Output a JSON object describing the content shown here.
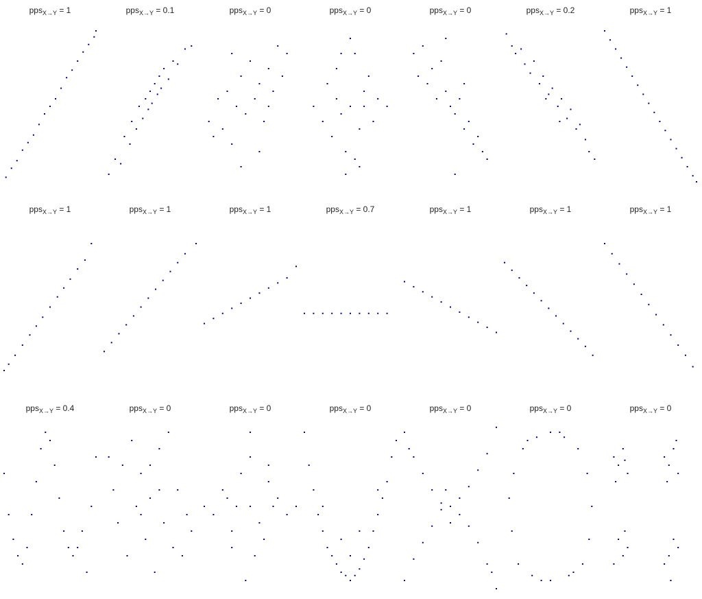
{
  "chart_data": [
    {
      "type": "scatter",
      "title": "pps",
      "title_sub": "X→Y",
      "title_end": " = 1",
      "color": "#000080",
      "xlim": [
        0,
        100
      ],
      "ylim": [
        0,
        100
      ],
      "x": [
        2,
        8,
        14,
        20,
        26,
        32,
        38,
        44,
        50,
        56,
        62,
        68,
        74,
        80,
        86,
        92,
        98,
        100
      ],
      "y": [
        3,
        9,
        14,
        21,
        26,
        31,
        38,
        45,
        50,
        55,
        62,
        69,
        74,
        80,
        86,
        91,
        96,
        100
      ]
    },
    {
      "type": "scatter",
      "title": "pps",
      "title_sub": "X→Y",
      "title_end": " = 0.1",
      "color": "#000080",
      "xlim": [
        0,
        100
      ],
      "ylim": [
        0,
        100
      ],
      "x": [
        5,
        12,
        18,
        22,
        28,
        30,
        35,
        38,
        42,
        45,
        48,
        50,
        52,
        55,
        58,
        60,
        62,
        65,
        70,
        75,
        80,
        88,
        95
      ],
      "y": [
        5,
        15,
        12,
        30,
        25,
        40,
        35,
        50,
        42,
        55,
        48,
        60,
        52,
        65,
        58,
        70,
        62,
        75,
        68,
        80,
        78,
        88,
        90
      ]
    },
    {
      "type": "scatter",
      "title": "pps",
      "title_sub": "X→Y",
      "title_end": " = 0",
      "color": "#000080",
      "xlim": [
        0,
        100
      ],
      "ylim": [
        0,
        100
      ],
      "x": [
        5,
        10,
        15,
        20,
        25,
        30,
        35,
        40,
        45,
        50,
        55,
        60,
        65,
        70,
        75,
        80,
        85,
        90,
        60,
        40,
        30,
        70
      ],
      "y": [
        40,
        30,
        55,
        35,
        60,
        25,
        50,
        70,
        45,
        80,
        55,
        65,
        40,
        75,
        60,
        90,
        70,
        85,
        20,
        10,
        85,
        50
      ]
    },
    {
      "type": "scatter",
      "title": "pps",
      "title_sub": "X→Y",
      "title_end": " = 0",
      "color": "#000080",
      "xlim": [
        0,
        100
      ],
      "ylim": [
        0,
        100
      ],
      "x": [
        10,
        20,
        25,
        30,
        35,
        40,
        45,
        50,
        55,
        60,
        65,
        70,
        75,
        80,
        90,
        50,
        45,
        55,
        35,
        65,
        40,
        60
      ],
      "y": [
        50,
        40,
        65,
        30,
        75,
        45,
        20,
        50,
        85,
        35,
        60,
        70,
        40,
        55,
        50,
        95,
        5,
        15,
        55,
        50,
        85,
        10
      ]
    },
    {
      "type": "scatter",
      "title": "pps",
      "title_sub": "X→Y",
      "title_end": " = 0",
      "color": "#000080",
      "xlim": [
        0,
        100
      ],
      "ylim": [
        0,
        100
      ],
      "x": [
        10,
        15,
        20,
        25,
        30,
        35,
        40,
        45,
        50,
        55,
        60,
        65,
        70,
        75,
        80,
        85,
        90,
        55,
        45,
        65
      ],
      "y": [
        85,
        70,
        90,
        65,
        75,
        55,
        80,
        60,
        50,
        45,
        55,
        35,
        40,
        25,
        30,
        20,
        15,
        5,
        95,
        65
      ]
    },
    {
      "type": "scatter",
      "title": "pps",
      "title_sub": "X→Y",
      "title_end": " = 0.2",
      "color": "#000080",
      "xlim": [
        0,
        100
      ],
      "ylim": [
        0,
        100
      ],
      "x": [
        2,
        8,
        12,
        18,
        22,
        28,
        32,
        38,
        42,
        48,
        52,
        58,
        62,
        68,
        72,
        78,
        82,
        88,
        92,
        98,
        45,
        60
      ],
      "y": [
        98,
        90,
        85,
        88,
        78,
        72,
        80,
        65,
        70,
        58,
        62,
        50,
        55,
        42,
        48,
        35,
        38,
        28,
        20,
        15,
        55,
        40
      ]
    },
    {
      "type": "scatter",
      "title": "pps",
      "title_sub": "X→Y",
      "title_end": " = 1",
      "color": "#000080",
      "xlim": [
        0,
        100
      ],
      "ylim": [
        0,
        100
      ],
      "x": [
        0,
        6,
        12,
        18,
        24,
        30,
        36,
        42,
        48,
        54,
        60,
        66,
        72,
        78,
        84,
        90,
        96,
        100
      ],
      "y": [
        100,
        94,
        88,
        82,
        76,
        70,
        64,
        58,
        52,
        46,
        40,
        34,
        28,
        22,
        16,
        10,
        4,
        0
      ]
    },
    {
      "type": "scatter",
      "title": "pps",
      "title_sub": "X→Y",
      "title_end": " = 1",
      "color": "#000080",
      "xlim": [
        0,
        100
      ],
      "ylim": [
        0,
        100
      ],
      "x": [
        0,
        5,
        12,
        20,
        28,
        35,
        42,
        50,
        58,
        65,
        72,
        80,
        88,
        95
      ],
      "y": [
        0,
        5,
        12,
        20,
        28,
        35,
        42,
        50,
        58,
        65,
        72,
        80,
        87,
        100
      ]
    },
    {
      "type": "scatter",
      "title": "pps",
      "title_sub": "X→Y",
      "title_end": " = 1",
      "color": "#000080",
      "xlim": [
        0,
        100
      ],
      "ylim": [
        0,
        100
      ],
      "x": [
        0,
        8,
        16,
        24,
        32,
        40,
        48,
        56,
        64,
        72,
        80,
        88,
        100
      ],
      "y": [
        15,
        22,
        29,
        36,
        43,
        50,
        57,
        64,
        71,
        78,
        85,
        92,
        100
      ]
    },
    {
      "type": "scatter",
      "title": "pps",
      "title_sub": "X→Y",
      "title_end": " = 1",
      "color": "#000080",
      "xlim": [
        0,
        100
      ],
      "ylim": [
        0,
        100
      ],
      "x": [
        0,
        10,
        20,
        30,
        40,
        50,
        60,
        70,
        80,
        90,
        100
      ],
      "y": [
        37,
        41,
        45,
        49,
        53,
        57,
        61,
        65,
        69,
        73,
        82
      ]
    },
    {
      "type": "scatter",
      "title": "pps",
      "title_sub": "X→Y",
      "title_end": " = 0.7",
      "color": "#000080",
      "xlim": [
        0,
        100
      ],
      "ylim": [
        0,
        100
      ],
      "x": [
        0,
        10,
        20,
        30,
        40,
        50,
        60,
        70,
        80,
        90
      ],
      "y": [
        45,
        45,
        45,
        45,
        45,
        45,
        45,
        45,
        45,
        45
      ]
    },
    {
      "type": "scatter",
      "title": "pps",
      "title_sub": "X→Y",
      "title_end": " = 1",
      "color": "#000080",
      "xlim": [
        0,
        100
      ],
      "ylim": [
        0,
        100
      ],
      "x": [
        0,
        10,
        20,
        30,
        40,
        50,
        60,
        70,
        80,
        90,
        100
      ],
      "y": [
        70,
        66,
        62,
        58,
        54,
        50,
        46,
        42,
        38,
        34,
        30
      ]
    },
    {
      "type": "scatter",
      "title": "pps",
      "title_sub": "X→Y",
      "title_end": " = 1",
      "color": "#000080",
      "xlim": [
        0,
        100
      ],
      "ylim": [
        0,
        100
      ],
      "x": [
        0,
        8,
        16,
        24,
        32,
        40,
        48,
        56,
        64,
        72,
        80,
        88,
        96
      ],
      "y": [
        85,
        79,
        73,
        67,
        61,
        55,
        49,
        43,
        37,
        31,
        25,
        19,
        12
      ]
    },
    {
      "type": "scatter",
      "title": "pps",
      "title_sub": "X→Y",
      "title_end": " = 1",
      "color": "#000080",
      "xlim": [
        0,
        100
      ],
      "ylim": [
        0,
        100
      ],
      "x": [
        0,
        8,
        16,
        24,
        32,
        40,
        48,
        56,
        64,
        72,
        80,
        88,
        96
      ],
      "y": [
        100,
        92,
        84,
        76,
        68,
        60,
        52,
        44,
        36,
        28,
        20,
        12,
        3
      ]
    },
    {
      "type": "scatter",
      "title": "pps",
      "title_sub": "X→Y",
      "title_end": " = 0.4",
      "color": "#000080",
      "xlim": [
        0,
        100
      ],
      "ylim": [
        0,
        100
      ],
      "x": [
        0,
        5,
        10,
        15,
        20,
        25,
        30,
        35,
        40,
        45,
        50,
        55,
        60,
        65,
        70,
        75,
        80,
        85,
        90,
        95,
        100
      ],
      "y": [
        70,
        45,
        30,
        20,
        15,
        25,
        45,
        65,
        85,
        95,
        90,
        75,
        55,
        35,
        25,
        20,
        25,
        35,
        10,
        50,
        80
      ]
    },
    {
      "type": "scatter",
      "title": "pps",
      "title_sub": "X→Y",
      "title_end": " = 0",
      "color": "#000080",
      "xlim": [
        0,
        100
      ],
      "ylim": [
        0,
        100
      ],
      "x": [
        5,
        10,
        20,
        30,
        15,
        40,
        50,
        60,
        70,
        80,
        90,
        85,
        25,
        35,
        45,
        55,
        65,
        75,
        95,
        50,
        60,
        40
      ],
      "y": [
        80,
        60,
        75,
        90,
        40,
        70,
        55,
        85,
        95,
        60,
        45,
        20,
        20,
        50,
        30,
        10,
        40,
        25,
        35,
        75,
        60,
        45
      ]
    },
    {
      "type": "scatter",
      "title": "pps",
      "title_sub": "X→Y",
      "title_end": " = 0",
      "color": "#000080",
      "xlim": [
        0,
        100
      ],
      "ylim": [
        0,
        100
      ],
      "x": [
        0,
        10,
        20,
        30,
        40,
        50,
        60,
        70,
        80,
        90,
        100,
        50,
        45,
        55,
        30,
        70,
        50,
        35,
        65,
        25,
        75
      ],
      "y": [
        50,
        45,
        60,
        35,
        70,
        50,
        40,
        65,
        55,
        45,
        50,
        95,
        5,
        20,
        25,
        75,
        80,
        50,
        30,
        55,
        50
      ]
    },
    {
      "type": "scatter",
      "title": "pps",
      "title_sub": "X→Y",
      "title_end": " = 0",
      "color": "#000080",
      "xlim": [
        0,
        100
      ],
      "ylim": [
        0,
        100
      ],
      "x": [
        0,
        5,
        10,
        15,
        20,
        25,
        30,
        35,
        40,
        45,
        50,
        55,
        60,
        65,
        70,
        75,
        80,
        85,
        90,
        95,
        100,
        20,
        40,
        60,
        80,
        50
      ],
      "y": [
        95,
        75,
        60,
        45,
        35,
        25,
        20,
        15,
        10,
        8,
        5,
        8,
        12,
        18,
        25,
        35,
        45,
        55,
        65,
        80,
        90,
        50,
        30,
        35,
        60,
        20
      ]
    },
    {
      "type": "scatter",
      "title": "pps",
      "title_sub": "X→Y",
      "title_end": " = 0",
      "color": "#000080",
      "xlim": [
        0,
        100
      ],
      "ylim": [
        0,
        100
      ],
      "x": [
        0,
        5,
        10,
        20,
        30,
        40,
        50,
        60,
        70,
        80,
        90,
        95,
        100,
        0,
        10,
        20,
        30,
        40,
        60,
        70,
        80,
        90,
        100,
        50,
        45
      ],
      "y": [
        95,
        85,
        80,
        70,
        60,
        52,
        50,
        45,
        38,
        28,
        15,
        10,
        0,
        5,
        18,
        28,
        38,
        48,
        55,
        62,
        72,
        82,
        98,
        40,
        60
      ]
    },
    {
      "type": "scatter",
      "title": "pps",
      "title_sub": "X→Y",
      "title_end": " = 0",
      "color": "#000080",
      "xlim": [
        0,
        100
      ],
      "ylim": [
        0,
        100
      ],
      "x": [
        50,
        65,
        80,
        90,
        95,
        92,
        85,
        70,
        50,
        30,
        15,
        8,
        5,
        10,
        20,
        35,
        60,
        40,
        75,
        25
      ],
      "y": [
        95,
        92,
        85,
        70,
        50,
        30,
        15,
        8,
        5,
        8,
        15,
        35,
        55,
        70,
        85,
        92,
        95,
        5,
        10,
        90
      ]
    },
    {
      "type": "scatter",
      "title": "pps",
      "title_sub": "X→Y",
      "title_end": " = 0",
      "color": "#000080",
      "xlim": [
        0,
        100
      ],
      "ylim": [
        0,
        100
      ],
      "x": [
        10,
        15,
        20,
        25,
        12,
        22,
        65,
        70,
        75,
        80,
        68,
        78,
        15,
        20,
        25,
        10,
        22,
        70,
        75,
        80,
        65,
        72
      ],
      "y": [
        80,
        75,
        85,
        70,
        65,
        78,
        80,
        75,
        85,
        70,
        65,
        90,
        30,
        20,
        25,
        15,
        35,
        20,
        30,
        25,
        15,
        5
      ]
    }
  ]
}
